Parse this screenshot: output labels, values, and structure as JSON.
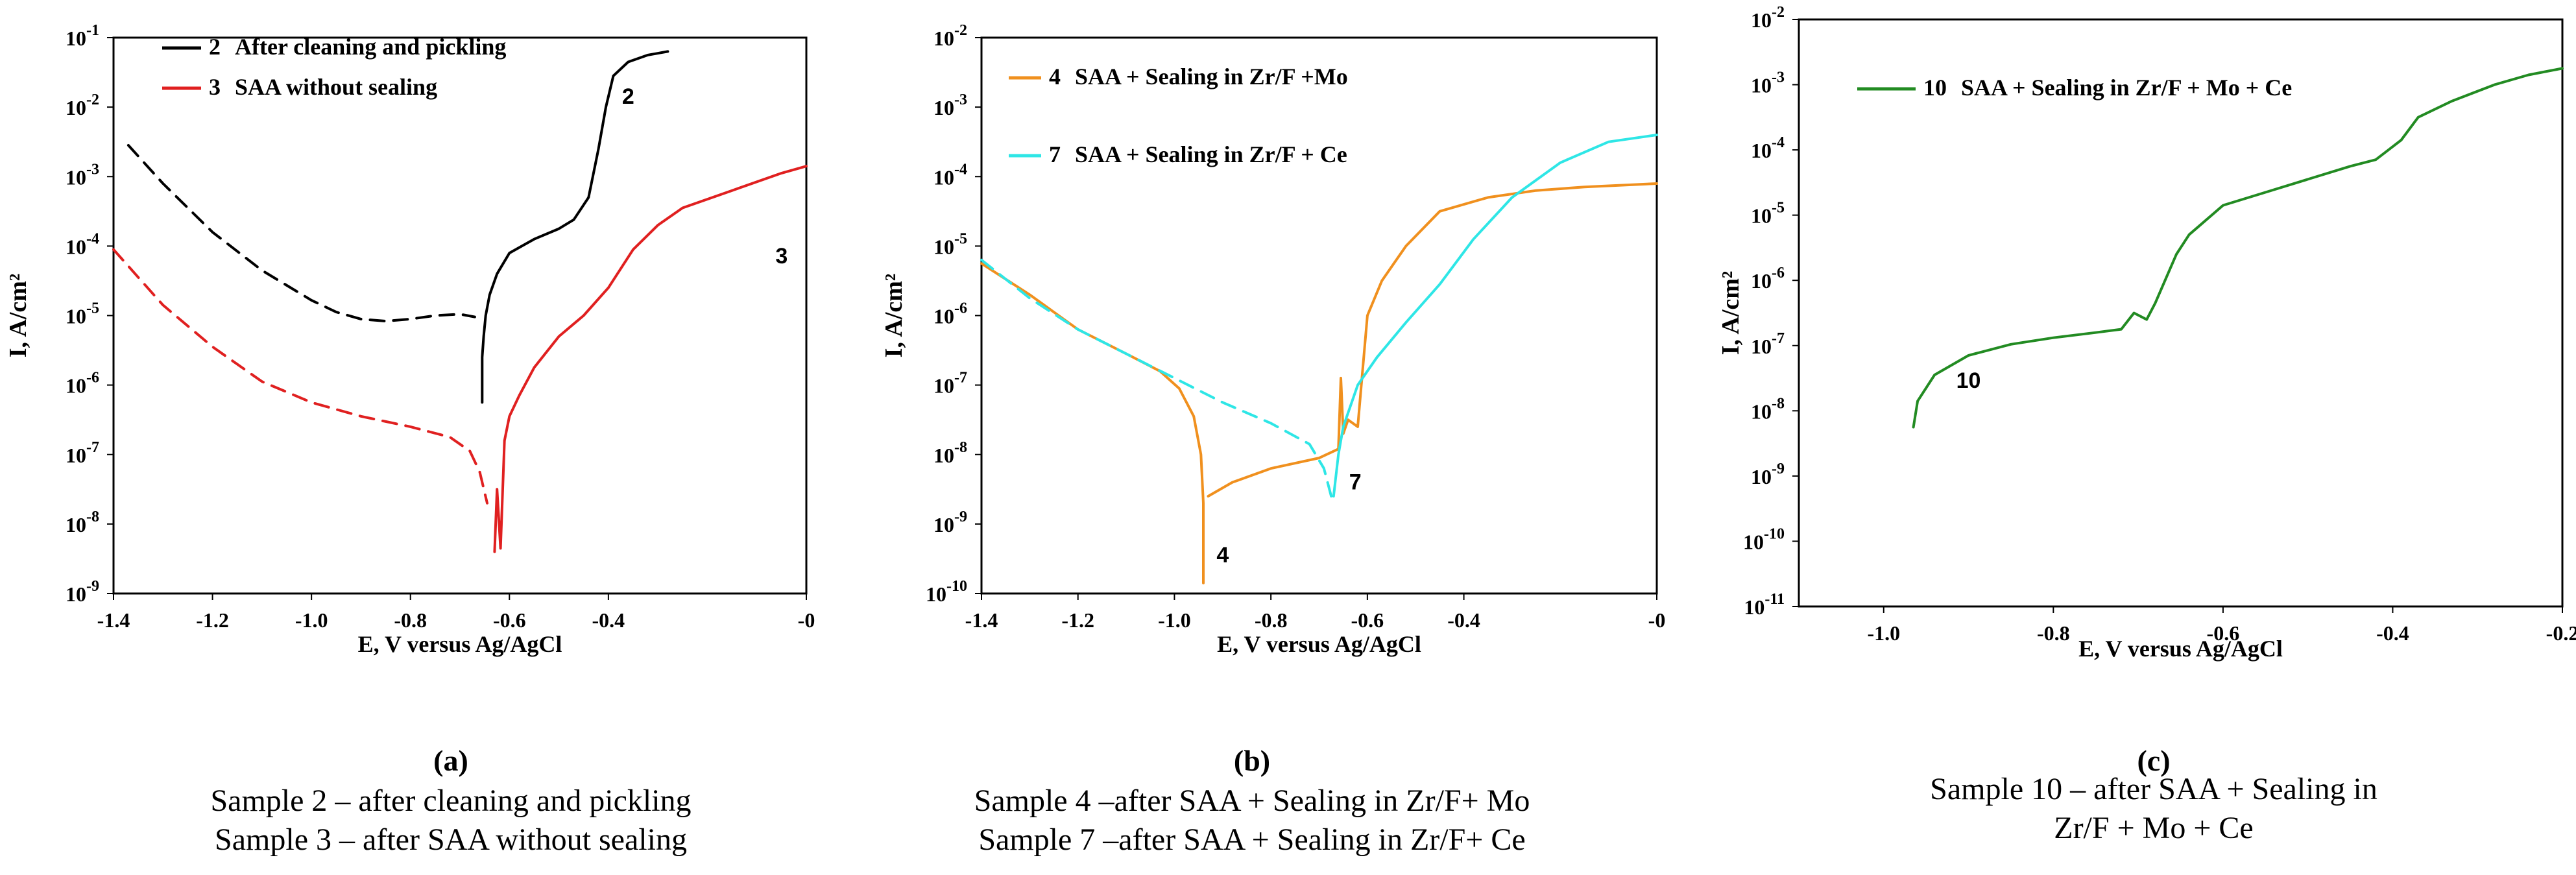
{
  "chart_data": [
    {
      "type": "line",
      "panel": "(a)",
      "xlabel": "E, V versus Ag/AgCl",
      "ylabel": "I, A/cm²",
      "xlim": [
        -1.4,
        0
      ],
      "ylim_log10": [
        -9,
        -1
      ],
      "x_ticks": [
        -1.4,
        -1.2,
        -1.0,
        -0.8,
        -0.6,
        -0.4,
        0
      ],
      "x_tick_labels": [
        "-1.4",
        "-1.2",
        "-1.0",
        "-0.8",
        "-0.6",
        "-0.4",
        "-0"
      ],
      "y_tick_exponents": [
        -9,
        -8,
        -7,
        -6,
        -5,
        -4,
        -3,
        -2,
        -1
      ],
      "legend": [
        {
          "num": "2",
          "label": "After cleaning and pickling",
          "color": "#000000"
        },
        {
          "num": "3",
          "label": "SAA without sealing",
          "color": "#e02020"
        }
      ],
      "series": [
        {
          "name": "2",
          "color": "#000000",
          "segments": [
            {
              "style": "dashed",
              "points": [
                [
                  -1.37,
                  -2.55
                ],
                [
                  -1.3,
                  -3.1
                ],
                [
                  -1.2,
                  -3.8
                ],
                [
                  -1.1,
                  -4.35
                ],
                [
                  -1.0,
                  -4.78
                ],
                [
                  -0.95,
                  -4.95
                ],
                [
                  -0.9,
                  -5.05
                ],
                [
                  -0.85,
                  -5.08
                ],
                [
                  -0.8,
                  -5.05
                ],
                [
                  -0.75,
                  -5.0
                ],
                [
                  -0.7,
                  -4.98
                ],
                [
                  -0.67,
                  -5.02
                ]
              ]
            },
            {
              "style": "solid",
              "points": [
                [
                  -0.655,
                  -6.25
                ],
                [
                  -0.655,
                  -5.6
                ],
                [
                  -0.652,
                  -5.3
                ],
                [
                  -0.648,
                  -5.0
                ],
                [
                  -0.64,
                  -4.7
                ],
                [
                  -0.625,
                  -4.4
                ],
                [
                  -0.6,
                  -4.1
                ],
                [
                  -0.55,
                  -3.9
                ],
                [
                  -0.5,
                  -3.75
                ],
                [
                  -0.47,
                  -3.62
                ],
                [
                  -0.44,
                  -3.3
                ],
                [
                  -0.42,
                  -2.6
                ],
                [
                  -0.405,
                  -2.0
                ],
                [
                  -0.39,
                  -1.55
                ],
                [
                  -0.36,
                  -1.35
                ],
                [
                  -0.32,
                  -1.25
                ],
                [
                  -0.28,
                  -1.2
                ]
              ]
            }
          ]
        },
        {
          "name": "3",
          "color": "#e02020",
          "segments": [
            {
              "style": "dashed",
              "points": [
                [
                  -1.4,
                  -4.05
                ],
                [
                  -1.3,
                  -4.85
                ],
                [
                  -1.2,
                  -5.45
                ],
                [
                  -1.1,
                  -5.95
                ],
                [
                  -1.0,
                  -6.25
                ],
                [
                  -0.9,
                  -6.45
                ],
                [
                  -0.8,
                  -6.6
                ],
                [
                  -0.72,
                  -6.75
                ],
                [
                  -0.68,
                  -6.95
                ],
                [
                  -0.66,
                  -7.25
                ],
                [
                  -0.645,
                  -7.7
                ]
              ]
            },
            {
              "style": "solid",
              "points": [
                [
                  -0.63,
                  -8.4
                ],
                [
                  -0.625,
                  -7.5
                ],
                [
                  -0.618,
                  -8.35
                ],
                [
                  -0.61,
                  -6.8
                ],
                [
                  -0.6,
                  -6.45
                ],
                [
                  -0.58,
                  -6.15
                ],
                [
                  -0.55,
                  -5.75
                ],
                [
                  -0.5,
                  -5.3
                ],
                [
                  -0.45,
                  -5.0
                ],
                [
                  -0.4,
                  -4.6
                ],
                [
                  -0.35,
                  -4.05
                ],
                [
                  -0.3,
                  -3.7
                ],
                [
                  -0.25,
                  -3.45
                ],
                [
                  -0.15,
                  -3.2
                ],
                [
                  -0.05,
                  -2.95
                ],
                [
                  0,
                  -2.85
                ]
              ]
            }
          ]
        }
      ],
      "curve_labels": [
        {
          "text": "2",
          "x": -0.36,
          "y": -1.95
        },
        {
          "text": "3",
          "x": -0.05,
          "y": -4.25
        }
      ]
    },
    {
      "type": "line",
      "panel": "(b)",
      "xlabel": "E, V versus Ag/AgCl",
      "ylabel": "I, A/cm²",
      "xlim": [
        -1.4,
        0
      ],
      "ylim_log10": [
        -10,
        -2
      ],
      "x_ticks": [
        -1.4,
        -1.2,
        -1.0,
        -0.8,
        -0.6,
        -0.4,
        0
      ],
      "x_tick_labels": [
        "-1.4",
        "-1.2",
        "-1.0",
        "-0.8",
        "-0.6",
        "-0.4",
        "-0"
      ],
      "y_tick_exponents": [
        -10,
        -9,
        -8,
        -7,
        -6,
        -5,
        -4,
        -3,
        -2
      ],
      "legend": [
        {
          "num": "4",
          "label": "SAA + Sealing in Zr/F +Mo",
          "color": "#f0901e"
        },
        {
          "num": "7",
          "label": "SAA + Sealing in Zr/F + Ce",
          "color": "#2ee6e6"
        }
      ],
      "series": [
        {
          "name": "4",
          "color": "#f0901e",
          "segments": [
            {
              "style": "solid",
              "points": [
                [
                  -1.4,
                  -5.25
                ],
                [
                  -1.3,
                  -5.7
                ],
                [
                  -1.2,
                  -6.2
                ],
                [
                  -1.1,
                  -6.55
                ],
                [
                  -1.03,
                  -6.8
                ],
                [
                  -0.99,
                  -7.05
                ],
                [
                  -0.96,
                  -7.45
                ],
                [
                  -0.945,
                  -8.0
                ],
                [
                  -0.94,
                  -8.7
                ],
                [
                  -0.94,
                  -9.85
                ]
              ]
            },
            {
              "style": "solid",
              "points": [
                [
                  -0.93,
                  -8.6
                ],
                [
                  -0.88,
                  -8.4
                ],
                [
                  -0.8,
                  -8.2
                ],
                [
                  -0.7,
                  -8.05
                ],
                [
                  -0.66,
                  -7.92
                ],
                [
                  -0.655,
                  -6.9
                ],
                [
                  -0.65,
                  -7.7
                ],
                [
                  -0.64,
                  -7.5
                ],
                [
                  -0.62,
                  -7.6
                ],
                [
                  -0.61,
                  -6.8
                ],
                [
                  -0.6,
                  -6.0
                ],
                [
                  -0.57,
                  -5.5
                ],
                [
                  -0.52,
                  -5.0
                ],
                [
                  -0.45,
                  -4.5
                ],
                [
                  -0.35,
                  -4.3
                ],
                [
                  -0.25,
                  -4.2
                ],
                [
                  -0.15,
                  -4.15
                ],
                [
                  0,
                  -4.1
                ]
              ]
            }
          ]
        },
        {
          "name": "7",
          "color": "#2ee6e6",
          "segments": [
            {
              "style": "dashed",
              "points": [
                [
                  -1.4,
                  -5.2
                ],
                [
                  -1.3,
                  -5.75
                ],
                [
                  -1.2,
                  -6.2
                ],
                [
                  -1.1,
                  -6.55
                ],
                [
                  -1.0,
                  -6.9
                ],
                [
                  -0.9,
                  -7.25
                ],
                [
                  -0.8,
                  -7.55
                ],
                [
                  -0.72,
                  -7.85
                ],
                [
                  -0.69,
                  -8.2
                ],
                [
                  -0.675,
                  -8.6
                ]
              ]
            },
            {
              "style": "solid",
              "points": [
                [
                  -0.67,
                  -8.6
                ],
                [
                  -0.66,
                  -8.0
                ],
                [
                  -0.65,
                  -7.6
                ],
                [
                  -0.62,
                  -7.0
                ],
                [
                  -0.58,
                  -6.6
                ],
                [
                  -0.52,
                  -6.1
                ],
                [
                  -0.45,
                  -5.55
                ],
                [
                  -0.38,
                  -4.9
                ],
                [
                  -0.3,
                  -4.3
                ],
                [
                  -0.2,
                  -3.8
                ],
                [
                  -0.1,
                  -3.5
                ],
                [
                  0,
                  -3.4
                ]
              ]
            }
          ]
        }
      ],
      "curve_labels": [
        {
          "text": "4",
          "x": -0.9,
          "y": -9.55
        },
        {
          "text": "7",
          "x": -0.625,
          "y": -8.5
        }
      ]
    },
    {
      "type": "line",
      "panel": "(c)",
      "xlabel": "E, V versus Ag/AgCl",
      "ylabel": "I, A/cm²",
      "xlim": [
        -1.1,
        -0.2
      ],
      "ylim_log10": [
        -11,
        -2
      ],
      "x_ticks": [
        -1.0,
        -0.8,
        -0.6,
        -0.4,
        -0.2
      ],
      "x_tick_labels": [
        "-1.0",
        "-0.8",
        "-0.6",
        "-0.4",
        "-0.2"
      ],
      "y_tick_exponents": [
        -11,
        -10,
        -9,
        -8,
        -7,
        -6,
        -5,
        -4,
        -3,
        -2
      ],
      "legend": [
        {
          "num": "10",
          "label": "SAA + Sealing in Zr/F + Mo + Ce",
          "color": "#228b22"
        }
      ],
      "series": [
        {
          "name": "10",
          "color": "#228b22",
          "segments": [
            {
              "style": "solid",
              "points": [
                [
                  -0.965,
                  -8.25
                ],
                [
                  -0.96,
                  -7.85
                ],
                [
                  -0.94,
                  -7.45
                ],
                [
                  -0.9,
                  -7.15
                ],
                [
                  -0.85,
                  -6.98
                ],
                [
                  -0.8,
                  -6.88
                ],
                [
                  -0.75,
                  -6.8
                ],
                [
                  -0.72,
                  -6.75
                ],
                [
                  -0.705,
                  -6.5
                ],
                [
                  -0.69,
                  -6.6
                ],
                [
                  -0.68,
                  -6.35
                ],
                [
                  -0.665,
                  -5.9
                ],
                [
                  -0.655,
                  -5.6
                ],
                [
                  -0.64,
                  -5.3
                ],
                [
                  -0.6,
                  -4.85
                ],
                [
                  -0.55,
                  -4.65
                ],
                [
                  -0.5,
                  -4.45
                ],
                [
                  -0.45,
                  -4.25
                ],
                [
                  -0.42,
                  -4.15
                ],
                [
                  -0.39,
                  -3.85
                ],
                [
                  -0.37,
                  -3.5
                ],
                [
                  -0.33,
                  -3.25
                ],
                [
                  -0.28,
                  -3.0
                ],
                [
                  -0.24,
                  -2.85
                ],
                [
                  -0.2,
                  -2.75
                ]
              ]
            }
          ]
        }
      ],
      "curve_labels": [
        {
          "text": "10",
          "x": -0.9,
          "y": -7.65
        }
      ]
    }
  ],
  "captions": [
    {
      "tag": "(a)",
      "lines": [
        "Sample 2 – after cleaning and pickling",
        "Sample 3 – after SAA without sealing"
      ]
    },
    {
      "tag": "(b)",
      "lines": [
        "Sample 4 –after SAA + Sealing in Zr/F+ Mo",
        "Sample 7 –after SAA + Sealing in Zr/F+ Ce"
      ]
    },
    {
      "tag": "(c)",
      "lines": [
        "Sample 10 – after SAA + Sealing in",
        "Zr/F + Mo + Ce"
      ]
    }
  ]
}
